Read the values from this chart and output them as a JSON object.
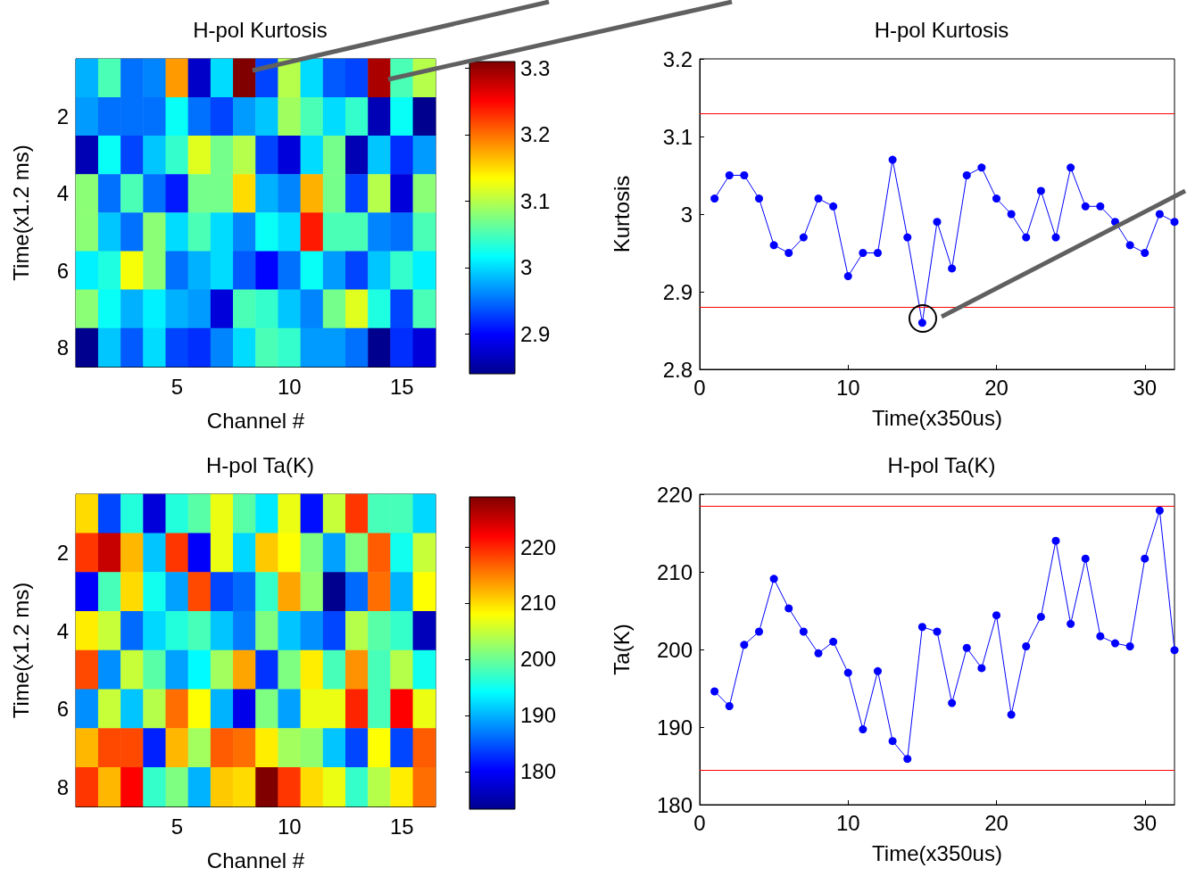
{
  "chart_data": [
    {
      "type": "heatmap",
      "title": "H-pol Kurtosis",
      "xlabel": "Channel #",
      "ylabel": "Time(x1.2 ms)",
      "categories": [
        null,
        null,
        null,
        null,
        "5",
        null,
        null,
        null,
        null,
        "10",
        null,
        null,
        null,
        null,
        "15",
        null
      ],
      "y_categories": [
        null,
        "2",
        null,
        "4",
        null,
        "6",
        null,
        "8"
      ],
      "cells": [
        [
          2.98,
          3.05,
          2.95,
          2.96,
          3.18,
          2.87,
          3.0,
          3.31,
          2.93,
          3.1,
          3.0,
          2.94,
          2.93,
          3.29,
          3.05,
          3.1
        ],
        [
          2.97,
          2.95,
          2.95,
          2.95,
          3.02,
          2.95,
          2.93,
          2.97,
          2.99,
          3.09,
          3.05,
          3.0,
          3.04,
          2.86,
          3.02,
          2.84
        ],
        [
          2.86,
          3.02,
          2.93,
          2.99,
          3.04,
          3.12,
          3.07,
          3.1,
          2.93,
          2.88,
          3.0,
          3.07,
          2.86,
          2.99,
          2.92,
          2.97
        ],
        [
          3.08,
          2.95,
          3.05,
          2.95,
          2.91,
          3.07,
          3.07,
          3.15,
          2.98,
          2.96,
          3.17,
          3.07,
          2.93,
          3.1,
          2.88,
          3.08
        ],
        [
          3.08,
          2.99,
          2.95,
          3.08,
          3.0,
          3.05,
          3.0,
          2.96,
          3.02,
          3.0,
          3.24,
          3.05,
          3.05,
          2.96,
          2.95,
          3.05
        ],
        [
          3.01,
          3.03,
          3.13,
          3.08,
          2.95,
          2.98,
          3.0,
          2.94,
          2.9,
          2.95,
          3.02,
          2.97,
          2.93,
          2.99,
          3.04,
          3.01
        ],
        [
          3.08,
          3.02,
          2.98,
          3.01,
          2.98,
          2.97,
          2.88,
          3.05,
          3.04,
          2.99,
          2.96,
          3.07,
          3.12,
          3.03,
          2.93,
          3.05
        ],
        [
          2.84,
          2.99,
          2.94,
          3.0,
          2.93,
          2.92,
          2.96,
          3.0,
          3.05,
          3.04,
          2.97,
          2.97,
          2.95,
          2.84,
          2.92,
          2.88
        ]
      ],
      "clim": [
        2.84,
        3.31
      ],
      "cticks": [
        2.9,
        3,
        3.1,
        3.2,
        3.3
      ]
    },
    {
      "type": "line",
      "title": "H-pol Kurtosis",
      "xlabel": "Time(x350us)",
      "ylabel": "Kurtosis",
      "color": "#0000ff",
      "marker": "circle",
      "x": [
        1,
        2,
        3,
        4,
        5,
        6,
        7,
        8,
        9,
        10,
        11,
        12,
        13,
        14,
        15,
        16,
        17,
        18,
        19,
        20,
        21,
        22,
        23,
        24,
        25,
        26,
        27,
        28,
        29,
        30,
        31,
        32
      ],
      "values": [
        3.02,
        3.05,
        3.05,
        3.02,
        2.96,
        2.95,
        2.97,
        3.02,
        3.01,
        2.92,
        2.95,
        2.95,
        3.07,
        2.97,
        2.86,
        2.99,
        2.93,
        3.05,
        3.06,
        3.02,
        3.0,
        2.97,
        3.03,
        2.97,
        3.06,
        3.01,
        3.01,
        2.99,
        2.96,
        2.95,
        3.0,
        2.99
      ],
      "xlim": [
        0,
        32
      ],
      "ylim": [
        2.8,
        3.2
      ],
      "xticks": [
        0,
        10,
        20,
        30
      ],
      "yticks": [
        2.8,
        2.9,
        3,
        3.1,
        3.2
      ],
      "ref_lines": [
        {
          "axis": "y",
          "value": 3.13,
          "color": "#ff0000"
        },
        {
          "axis": "y",
          "value": 2.88,
          "color": "#ff0000"
        }
      ]
    },
    {
      "type": "heatmap",
      "title": "H-pol Ta(K)",
      "xlabel": "Channel #",
      "ylabel": "Time(x1.2 ms)",
      "categories": [
        null,
        null,
        null,
        null,
        "5",
        null,
        null,
        null,
        null,
        "10",
        null,
        null,
        null,
        null,
        "15",
        null
      ],
      "y_categories": [
        null,
        "2",
        null,
        "4",
        null,
        "6",
        null,
        "8"
      ],
      "cells": [
        [
          210,
          184,
          196,
          178,
          196,
          199,
          207,
          199,
          193,
          207,
          181,
          205,
          219,
          198,
          198,
          192
        ],
        [
          219,
          225,
          212,
          191,
          219,
          180,
          207,
          192,
          211,
          208,
          201,
          189,
          201,
          217,
          195,
          205
        ],
        [
          180,
          198,
          210,
          195,
          189,
          218,
          184,
          186,
          197,
          213,
          202,
          173,
          186,
          216,
          190,
          208
        ],
        [
          209,
          205,
          186,
          192,
          196,
          198,
          191,
          187,
          201,
          191,
          188,
          184,
          204,
          199,
          197,
          176
        ],
        [
          218,
          188,
          205,
          199,
          189,
          194,
          203,
          213,
          183,
          201,
          209,
          198,
          214,
          198,
          204,
          195
        ],
        [
          188,
          205,
          191,
          204,
          216,
          208,
          190,
          179,
          201,
          189,
          207,
          207,
          220,
          198,
          222,
          207
        ],
        [
          212,
          218,
          218,
          182,
          212,
          203,
          217,
          216,
          209,
          203,
          202,
          191,
          184,
          208,
          184,
          217
        ],
        [
          219,
          212,
          222,
          197,
          201,
          190,
          211,
          210,
          229,
          219,
          210,
          207,
          197,
          204,
          209,
          216
        ]
      ],
      "clim": [
        173.3,
        228.9
      ],
      "cticks": [
        180,
        190,
        200,
        210,
        220
      ]
    },
    {
      "type": "line",
      "title": "H-pol Ta(K)",
      "xlabel": "Time(x350us)",
      "ylabel": "Ta(K)",
      "color": "#0000ff",
      "marker": "circle",
      "x": [
        1,
        2,
        3,
        4,
        5,
        6,
        7,
        8,
        9,
        10,
        11,
        12,
        13,
        14,
        15,
        16,
        17,
        18,
        19,
        20,
        21,
        22,
        23,
        24,
        25,
        26,
        27,
        28,
        29,
        30,
        31,
        32
      ],
      "values": [
        194.6,
        192.7,
        200.6,
        202.3,
        209.1,
        205.3,
        202.3,
        199.5,
        201.0,
        197.0,
        189.7,
        197.2,
        188.2,
        185.9,
        202.9,
        202.3,
        193.1,
        200.2,
        197.6,
        204.4,
        191.6,
        200.4,
        204.2,
        214.0,
        203.3,
        211.7,
        201.7,
        200.8,
        200.4,
        211.7,
        217.9,
        199.9
      ],
      "xlim": [
        0,
        32
      ],
      "ylim": [
        180,
        220
      ],
      "xticks": [
        0,
        10,
        20,
        30
      ],
      "yticks": [
        180,
        190,
        200,
        210,
        220
      ],
      "ref_lines": [
        {
          "axis": "y",
          "value": 218.5,
          "color": "#ff0000"
        },
        {
          "axis": "y",
          "value": 184.4,
          "color": "#ff0000"
        }
      ]
    }
  ]
}
